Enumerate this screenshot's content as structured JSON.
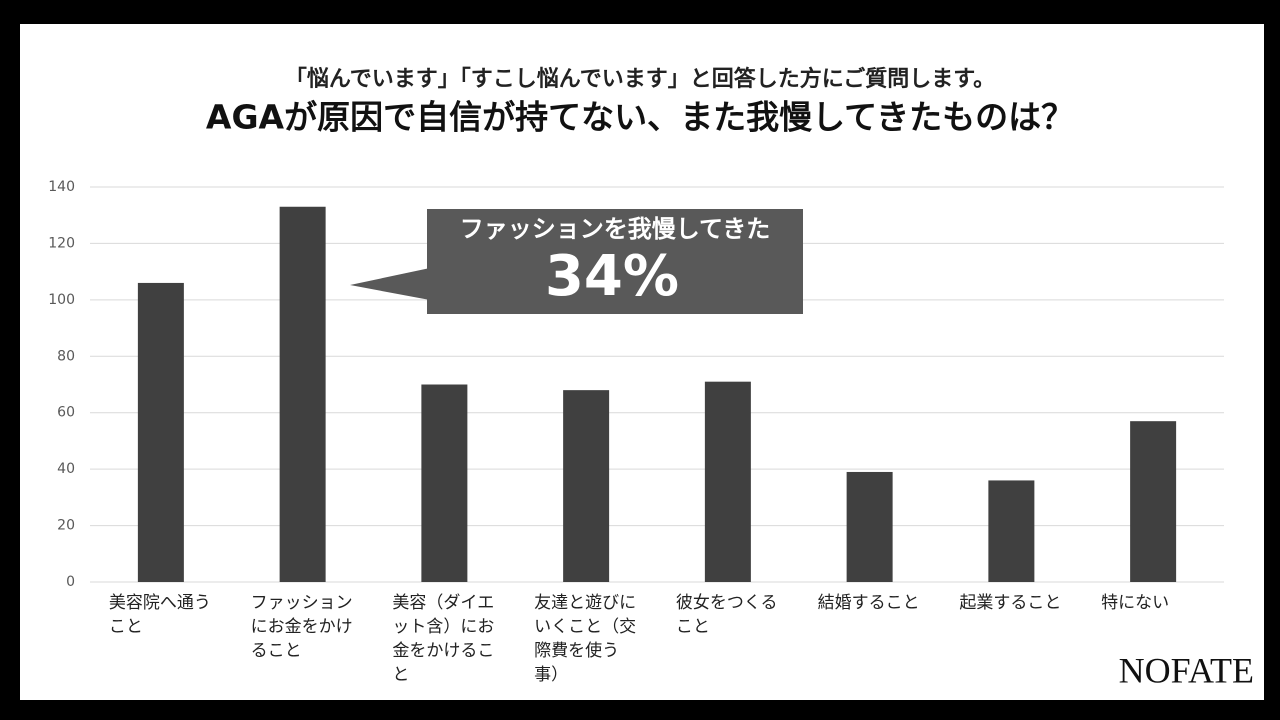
{
  "chart_data": {
    "type": "bar",
    "subtitle": "「悩んでいます」「すこし悩んでいます」と回答した方にご質問します。",
    "title": "AGAが原因で自信が持てない、また我慢してきたものは？",
    "categories": [
      "美容院へ通うこと",
      "ファッションにお金をかけること",
      "美容（ダイエット含）にお金をかけること",
      "友達と遊びにいくこと（交際費を使う事）",
      "彼女をつくること",
      "結婚すること",
      "起業すること",
      "特にない"
    ],
    "values": [
      106,
      133,
      70,
      68,
      71,
      39,
      36,
      57
    ],
    "color": "#404040",
    "ylim": [
      0,
      140
    ],
    "yticks": [
      0,
      20,
      40,
      60,
      80,
      100,
      120,
      140
    ],
    "grid": true,
    "annotation": {
      "text": "ファッションを我慢してきた",
      "label": "34%"
    }
  },
  "brand": "NOFATE"
}
